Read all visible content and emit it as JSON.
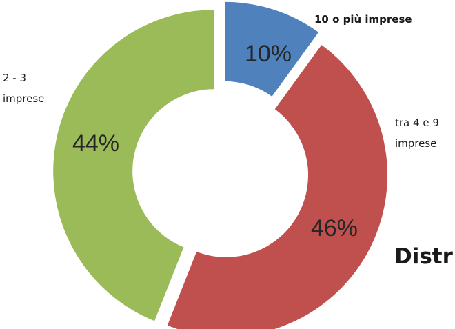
{
  "chart_data": {
    "type": "pie",
    "variant": "donut",
    "exploded": true,
    "title_partial": "Distr",
    "slices": [
      {
        "label": "10 o più imprese",
        "value": 10,
        "display": "10%",
        "color": "#4f81bd"
      },
      {
        "label": "tra 4 e 9 imprese",
        "label_lines": [
          "tra 4 e 9",
          "imprese"
        ],
        "value": 46,
        "display": "46%",
        "color": "#c0504d"
      },
      {
        "label": "2 - 3 imprese",
        "label_lines": [
          "2 - 3",
          "imprese"
        ],
        "value": 44,
        "display": "44%",
        "color": "#9bbb59"
      }
    ]
  }
}
